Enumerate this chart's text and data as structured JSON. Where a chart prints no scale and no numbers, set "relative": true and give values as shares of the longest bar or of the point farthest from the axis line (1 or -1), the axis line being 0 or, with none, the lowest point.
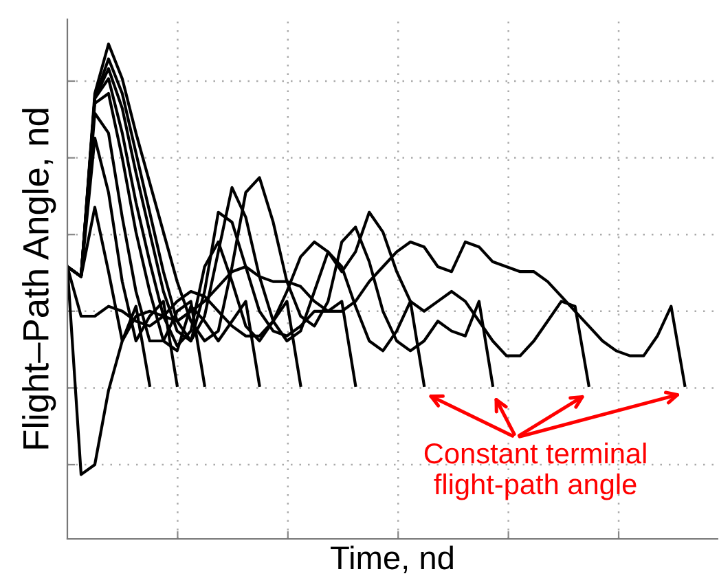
{
  "chart_data": {
    "type": "line",
    "xlabel": "Time, nd",
    "ylabel": "Flight–Path Angle, nd",
    "relative": true,
    "grid": true,
    "annotations": [
      "Constant terminal\nflight-path angle"
    ],
    "categories": [
      null,
      null,
      null,
      null,
      null,
      null,
      null,
      null,
      null,
      null,
      null,
      null,
      null,
      null,
      null,
      null,
      null,
      null,
      null,
      null,
      null,
      null,
      null,
      null,
      null,
      null,
      null,
      null,
      null,
      null,
      null,
      null,
      null,
      null,
      null,
      null,
      null,
      null,
      null,
      null,
      null,
      null,
      null,
      null,
      null,
      null
    ],
    "series": [
      {
        "color": "#000000",
        "values": [
          0.55,
          0.53,
          0.67,
          0.54,
          0.4,
          0.47,
          0.31,
          null,
          null,
          null,
          null,
          null,
          null,
          null,
          null,
          null,
          null,
          null,
          null,
          null,
          null,
          null,
          null,
          null,
          null,
          null,
          null,
          null,
          null,
          null,
          null,
          null,
          null,
          null,
          null,
          null,
          null,
          null,
          null,
          null,
          null,
          null,
          null,
          null,
          null,
          null
        ]
      },
      {
        "color": "#000000",
        "values": [
          0.55,
          0.53,
          0.81,
          0.7,
          0.52,
          0.4,
          0.45,
          0.48,
          0.31,
          null,
          null,
          null,
          null,
          null,
          null,
          null,
          null,
          null,
          null,
          null,
          null,
          null,
          null,
          null,
          null,
          null,
          null,
          null,
          null,
          null,
          null,
          null,
          null,
          null,
          null,
          null,
          null,
          null,
          null,
          null,
          null,
          null,
          null,
          null,
          null,
          null
        ]
      },
      {
        "color": "#000000",
        "values": [
          0.55,
          0.53,
          0.86,
          0.82,
          0.65,
          0.5,
          0.4,
          0.4,
          0.46,
          0.48,
          0.31,
          null,
          null,
          null,
          null,
          null,
          null,
          null,
          null,
          null,
          null,
          null,
          null,
          null,
          null,
          null,
          null,
          null,
          null,
          null,
          null,
          null,
          null,
          null,
          null,
          null,
          null,
          null,
          null,
          null,
          null,
          null,
          null,
          null,
          null,
          null
        ]
      },
      {
        "color": "#000000",
        "values": [
          0.55,
          0.53,
          0.88,
          0.9,
          0.77,
          0.62,
          0.5,
          0.4,
          0.38,
          0.47,
          0.44,
          0.4,
          0.44,
          0.48,
          0.31,
          null,
          null,
          null,
          null,
          null,
          null,
          null,
          null,
          null,
          null,
          null,
          null,
          null,
          null,
          null,
          null,
          null,
          null,
          null,
          null,
          null,
          null,
          null,
          null,
          null,
          null,
          null,
          null,
          null,
          null,
          null
        ]
      },
      {
        "color": "#000000",
        "values": [
          0.55,
          0.53,
          0.89,
          0.93,
          0.82,
          0.68,
          0.56,
          0.45,
          0.39,
          0.42,
          0.55,
          0.6,
          0.52,
          0.43,
          0.4,
          0.44,
          0.48,
          0.31,
          null,
          null,
          null,
          null,
          null,
          null,
          null,
          null,
          null,
          null,
          null,
          null,
          null,
          null,
          null,
          null,
          null,
          null,
          null,
          null,
          null,
          null,
          null,
          null,
          null,
          null,
          null,
          null
        ]
      },
      {
        "color": "#000000",
        "values": [
          0.55,
          0.53,
          0.89,
          0.95,
          0.87,
          0.74,
          0.62,
          0.5,
          0.42,
          0.4,
          0.5,
          0.66,
          0.64,
          0.55,
          0.46,
          0.42,
          0.41,
          0.43,
          0.46,
          0.46,
          0.48,
          0.31,
          null,
          null,
          null,
          null,
          null,
          null,
          null,
          null,
          null,
          null,
          null,
          null,
          null,
          null,
          null,
          null,
          null,
          null,
          null,
          null,
          null,
          null,
          null,
          null
        ]
      },
      {
        "color": "#000000",
        "values": [
          0.55,
          0.53,
          0.89,
          0.97,
          0.9,
          0.78,
          0.66,
          0.54,
          0.44,
          0.4,
          0.45,
          0.58,
          0.71,
          0.65,
          0.53,
          0.44,
          0.4,
          0.42,
          0.5,
          0.58,
          0.55,
          0.47,
          0.4,
          0.38,
          0.42,
          0.48,
          0.31,
          null,
          null,
          null,
          null,
          null,
          null,
          null,
          null,
          null,
          null,
          null,
          null,
          null,
          null,
          null,
          null,
          null,
          null,
          null
        ]
      },
      {
        "color": "#000000",
        "values": [
          0.55,
          0.53,
          0.9,
          1.0,
          0.93,
          0.82,
          0.72,
          0.62,
          0.52,
          0.44,
          0.4,
          0.42,
          0.55,
          0.7,
          0.73,
          0.64,
          0.52,
          0.45,
          0.43,
          0.48,
          0.6,
          0.63,
          0.56,
          0.46,
          0.4,
          0.38,
          0.4,
          0.44,
          0.42,
          0.41,
          0.48,
          0.31,
          null,
          null,
          null,
          null,
          null,
          null,
          null,
          null,
          null,
          null,
          null,
          null,
          null,
          null
        ]
      },
      {
        "color": "#000000",
        "values": [
          0.55,
          0.45,
          0.45,
          0.47,
          0.46,
          0.44,
          0.43,
          0.45,
          0.48,
          0.5,
          0.49,
          0.46,
          0.43,
          0.41,
          0.41,
          0.44,
          0.5,
          0.57,
          0.6,
          0.58,
          0.54,
          0.58,
          0.66,
          0.62,
          0.54,
          0.48,
          0.46,
          0.48,
          0.5,
          0.48,
          0.44,
          0.4,
          0.37,
          0.37,
          0.4,
          0.44,
          0.48,
          0.47,
          0.31,
          null,
          null,
          null,
          null,
          null,
          null,
          null
        ]
      },
      {
        "color": "#000000",
        "values": [
          0.55,
          0.13,
          0.15,
          0.3,
          0.4,
          0.45,
          0.46,
          0.45,
          0.44,
          0.46,
          0.48,
          0.51,
          0.54,
          0.55,
          0.53,
          0.52,
          0.52,
          0.51,
          0.48,
          0.46,
          0.46,
          0.48,
          0.52,
          0.55,
          0.58,
          0.6,
          0.59,
          0.55,
          0.54,
          0.6,
          0.59,
          0.56,
          0.55,
          0.54,
          0.54,
          0.52,
          0.49,
          0.46,
          0.43,
          0.4,
          0.38,
          0.37,
          0.37,
          0.41,
          0.47,
          0.31
        ]
      }
    ]
  }
}
